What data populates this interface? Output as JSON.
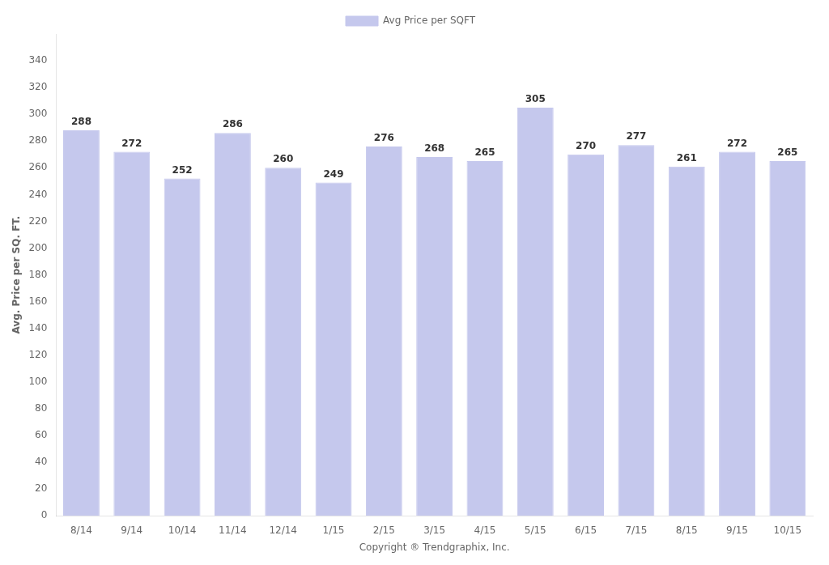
{
  "chart_data": {
    "type": "bar",
    "categories": [
      "8/14",
      "9/14",
      "10/14",
      "11/14",
      "12/14",
      "1/15",
      "2/15",
      "3/15",
      "4/15",
      "5/15",
      "6/15",
      "7/15",
      "8/15",
      "9/15",
      "10/15"
    ],
    "series": [
      {
        "name": "Avg Price per SQFT",
        "color": "#c5c8ed",
        "values": [
          288,
          272,
          252,
          286,
          260,
          249,
          276,
          268,
          265,
          305,
          270,
          277,
          261,
          272,
          265
        ]
      }
    ],
    "ylabel": "Avg. Price per SQ. FT.",
    "xlabel": "Copyright ® Trendgraphix, Inc.",
    "ylim": [
      0,
      360
    ],
    "yticks": [
      0,
      20,
      40,
      60,
      80,
      100,
      120,
      140,
      160,
      180,
      200,
      220,
      240,
      260,
      280,
      300,
      320,
      340
    ],
    "grid": false,
    "legend": "top",
    "data_labels": true
  }
}
